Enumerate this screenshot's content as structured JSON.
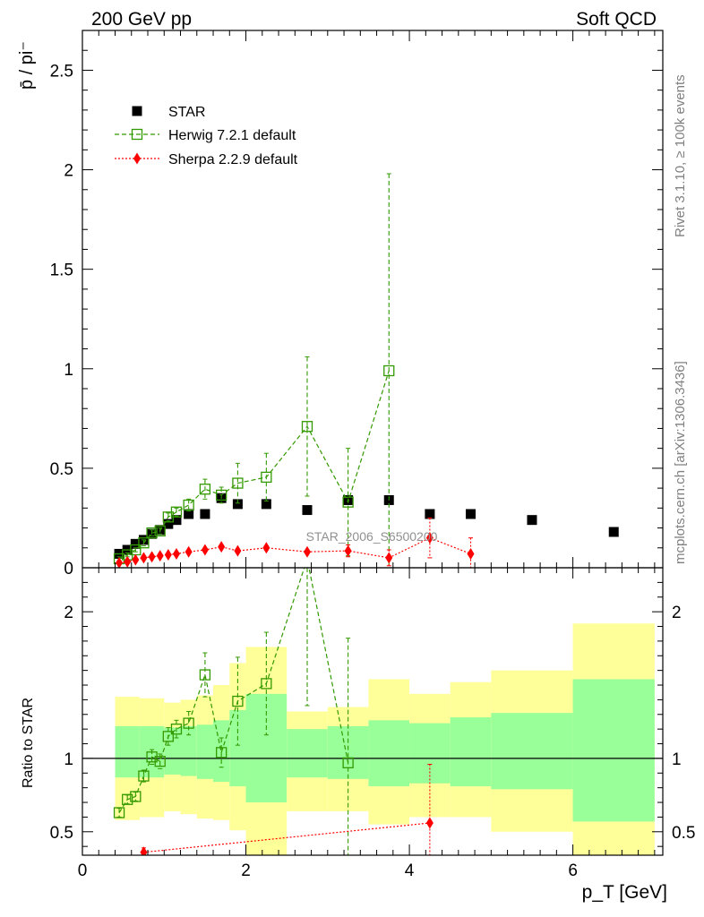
{
  "header": {
    "left": "200 GeV pp",
    "right": "Soft QCD"
  },
  "side_labels": {
    "rivet": "Rivet 3.1.10, ≥ 100k events",
    "source": "mcplots.cern.ch [arXiv:1306.3436]"
  },
  "watermark": "STAR_2006_S6500200",
  "colors": {
    "star": "#000000",
    "herwig": "#339900",
    "sherpa": "#ff0000",
    "band_outer": "#ffff99",
    "band_inner": "#99ff99"
  },
  "chart_data": [
    {
      "type": "scatter",
      "ylabel": "p̄ / pi⁻",
      "xlim": [
        0,
        7.1
      ],
      "ylim": [
        0,
        2.7
      ],
      "yticks": [
        0,
        0.5,
        1,
        1.5,
        2,
        2.5
      ],
      "ytick_labels": [
        "0",
        "0.5",
        "1",
        "1.5",
        "2",
        "2.5"
      ],
      "legend": [
        "STAR",
        "Herwig 7.2.1 default",
        "Sherpa 2.2.9 default"
      ],
      "series": [
        {
          "name": "STAR",
          "marker": "square",
          "x": [
            0.45,
            0.55,
            0.65,
            0.75,
            0.85,
            0.95,
            1.05,
            1.15,
            1.3,
            1.5,
            1.7,
            1.9,
            2.25,
            2.75,
            3.25,
            3.75,
            4.25,
            4.75,
            5.5,
            6.5
          ],
          "y": [
            0.07,
            0.09,
            0.12,
            0.14,
            0.17,
            0.19,
            0.22,
            0.24,
            0.27,
            0.27,
            0.35,
            0.32,
            0.32,
            0.29,
            0.34,
            0.34,
            0.27,
            0.27,
            0.24,
            0.18
          ]
        },
        {
          "name": "Herwig 7.2.1 default",
          "marker": "open-square",
          "x": [
            0.45,
            0.55,
            0.65,
            0.75,
            0.85,
            0.95,
            1.05,
            1.15,
            1.3,
            1.5,
            1.7,
            1.9,
            2.25,
            2.75,
            3.25,
            3.75
          ],
          "y": [
            0.045,
            0.065,
            0.09,
            0.125,
            0.175,
            0.185,
            0.255,
            0.28,
            0.315,
            0.395,
            0.365,
            0.425,
            0.455,
            0.71,
            0.33,
            0.99
          ],
          "err": [
            0.01,
            0.01,
            0.01,
            0.015,
            0.015,
            0.015,
            0.02,
            0.02,
            0.03,
            0.05,
            0.04,
            0.1,
            0.12,
            0.35,
            0.27,
            0.99
          ]
        },
        {
          "name": "Sherpa 2.2.9 default",
          "marker": "diamond",
          "x": [
            0.45,
            0.55,
            0.65,
            0.75,
            0.85,
            0.95,
            1.05,
            1.15,
            1.3,
            1.5,
            1.7,
            1.9,
            2.25,
            2.75,
            3.25,
            3.75,
            4.25,
            4.75
          ],
          "y": [
            0.025,
            0.03,
            0.04,
            0.05,
            0.055,
            0.06,
            0.065,
            0.07,
            0.08,
            0.09,
            0.105,
            0.085,
            0.1,
            0.08,
            0.085,
            0.05,
            0.15,
            0.07
          ],
          "err": [
            0.003,
            0.003,
            0.004,
            0.005,
            0.005,
            0.005,
            0.006,
            0.006,
            0.007,
            0.008,
            0.01,
            0.008,
            0.01,
            0.01,
            0.03,
            0.04,
            0.1,
            0.08
          ]
        }
      ]
    },
    {
      "type": "scatter",
      "xlabel": "p_T [GeV]",
      "ylabel": "Ratio to STAR",
      "xlim": [
        0,
        7.1
      ],
      "ylim": [
        0.34,
        2.3
      ],
      "xticks": [
        0,
        2,
        4,
        6
      ],
      "xtick_labels": [
        "0",
        "2",
        "4",
        "6"
      ],
      "yticks": [
        0.5,
        1,
        2
      ],
      "ytick_labels": [
        "0.5",
        "1",
        "2"
      ],
      "bands": [
        {
          "xlo": 0.4,
          "xhi": 0.7,
          "outer": [
            0.58,
            1.42
          ],
          "inner": [
            0.87,
            1.22
          ]
        },
        {
          "xlo": 0.7,
          "xhi": 1.0,
          "outer": [
            0.6,
            1.41
          ],
          "inner": [
            0.87,
            1.22
          ]
        },
        {
          "xlo": 1.0,
          "xhi": 1.2,
          "outer": [
            0.64,
            1.38
          ],
          "inner": [
            0.89,
            1.21
          ]
        },
        {
          "xlo": 1.2,
          "xhi": 1.4,
          "outer": [
            0.62,
            1.4
          ],
          "inner": [
            0.88,
            1.22
          ]
        },
        {
          "xlo": 1.4,
          "xhi": 1.6,
          "outer": [
            0.59,
            1.43
          ],
          "inner": [
            0.86,
            1.23
          ]
        },
        {
          "xlo": 1.6,
          "xhi": 1.8,
          "outer": [
            0.58,
            1.5
          ],
          "inner": [
            0.84,
            1.26
          ]
        },
        {
          "xlo": 1.8,
          "xhi": 2.0,
          "outer": [
            0.51,
            1.65
          ],
          "inner": [
            0.81,
            1.33
          ]
        },
        {
          "xlo": 2.0,
          "xhi": 2.5,
          "outer": [
            0.29,
            1.76
          ],
          "inner": [
            0.7,
            1.44
          ]
        },
        {
          "xlo": 2.5,
          "xhi": 3.0,
          "outer": [
            0.64,
            1.32
          ],
          "inner": [
            0.87,
            1.2
          ]
        },
        {
          "xlo": 3.0,
          "xhi": 3.5,
          "outer": [
            0.64,
            1.35
          ],
          "inner": [
            0.86,
            1.22
          ]
        },
        {
          "xlo": 3.5,
          "xhi": 4.0,
          "outer": [
            0.55,
            1.54
          ],
          "inner": [
            0.81,
            1.26
          ]
        },
        {
          "xlo": 4.0,
          "xhi": 4.5,
          "outer": [
            0.6,
            1.44
          ],
          "inner": [
            0.83,
            1.24
          ]
        },
        {
          "xlo": 4.5,
          "xhi": 5.0,
          "outer": [
            0.6,
            1.52
          ],
          "inner": [
            0.81,
            1.28
          ]
        },
        {
          "xlo": 5.0,
          "xhi": 6.0,
          "outer": [
            0.5,
            1.6
          ],
          "inner": [
            0.79,
            1.31
          ]
        },
        {
          "xlo": 6.0,
          "xhi": 7.0,
          "outer": [
            0.3,
            1.92
          ],
          "inner": [
            0.57,
            1.54
          ]
        }
      ],
      "series": [
        {
          "name": "Herwig 7.2.1 default",
          "marker": "open-square",
          "x": [
            0.45,
            0.55,
            0.65,
            0.75,
            0.85,
            0.95,
            1.05,
            1.15,
            1.3,
            1.5,
            1.7,
            1.9,
            2.25,
            2.75,
            3.25
          ],
          "y": [
            0.63,
            0.72,
            0.74,
            0.88,
            1.01,
            0.98,
            1.15,
            1.2,
            1.24,
            1.57,
            1.04,
            1.39,
            1.51,
            2.36,
            0.97
          ],
          "err": [
            0.03,
            0.03,
            0.03,
            0.04,
            0.05,
            0.05,
            0.06,
            0.06,
            0.08,
            0.15,
            0.1,
            0.3,
            0.35,
            1.0,
            0.85
          ]
        },
        {
          "name": "Sherpa 2.2.9 default",
          "marker": "diamond",
          "x": [
            0.75,
            4.25
          ],
          "y": [
            0.36,
            0.56
          ],
          "err": [
            0.03,
            0.4
          ]
        }
      ]
    }
  ]
}
